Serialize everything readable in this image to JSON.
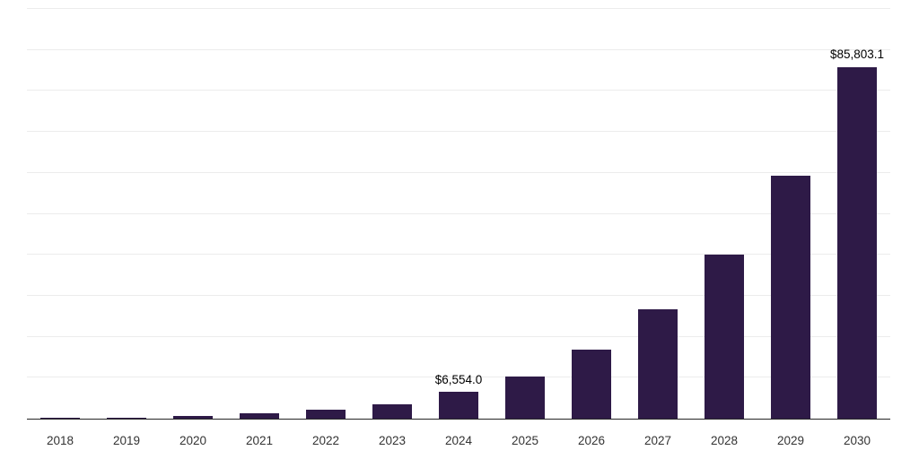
{
  "chart_data": {
    "type": "bar",
    "title": "",
    "xlabel": "",
    "ylabel": "",
    "categories": [
      "2018",
      "2019",
      "2020",
      "2021",
      "2022",
      "2023",
      "2024",
      "2025",
      "2026",
      "2027",
      "2028",
      "2029",
      "2030"
    ],
    "values": [
      100,
      330,
      650,
      1300,
      2200,
      3500,
      6554.0,
      10300,
      16900,
      26700,
      40100,
      59400,
      85803.1
    ],
    "data_labels": [
      "",
      "",
      "",
      "",
      "",
      "",
      "$6,554.0",
      "",
      "",
      "",
      "",
      "",
      "$85,803.1"
    ],
    "ylim": [
      0,
      100000
    ],
    "grid_interval": 10000,
    "grid": "on",
    "legend": "none",
    "bar_color": "#2e1a47",
    "axis_color": "#262626",
    "gridline_color": "#ececec",
    "value_label_color": "#000000",
    "tick_label_color": "#333333"
  }
}
